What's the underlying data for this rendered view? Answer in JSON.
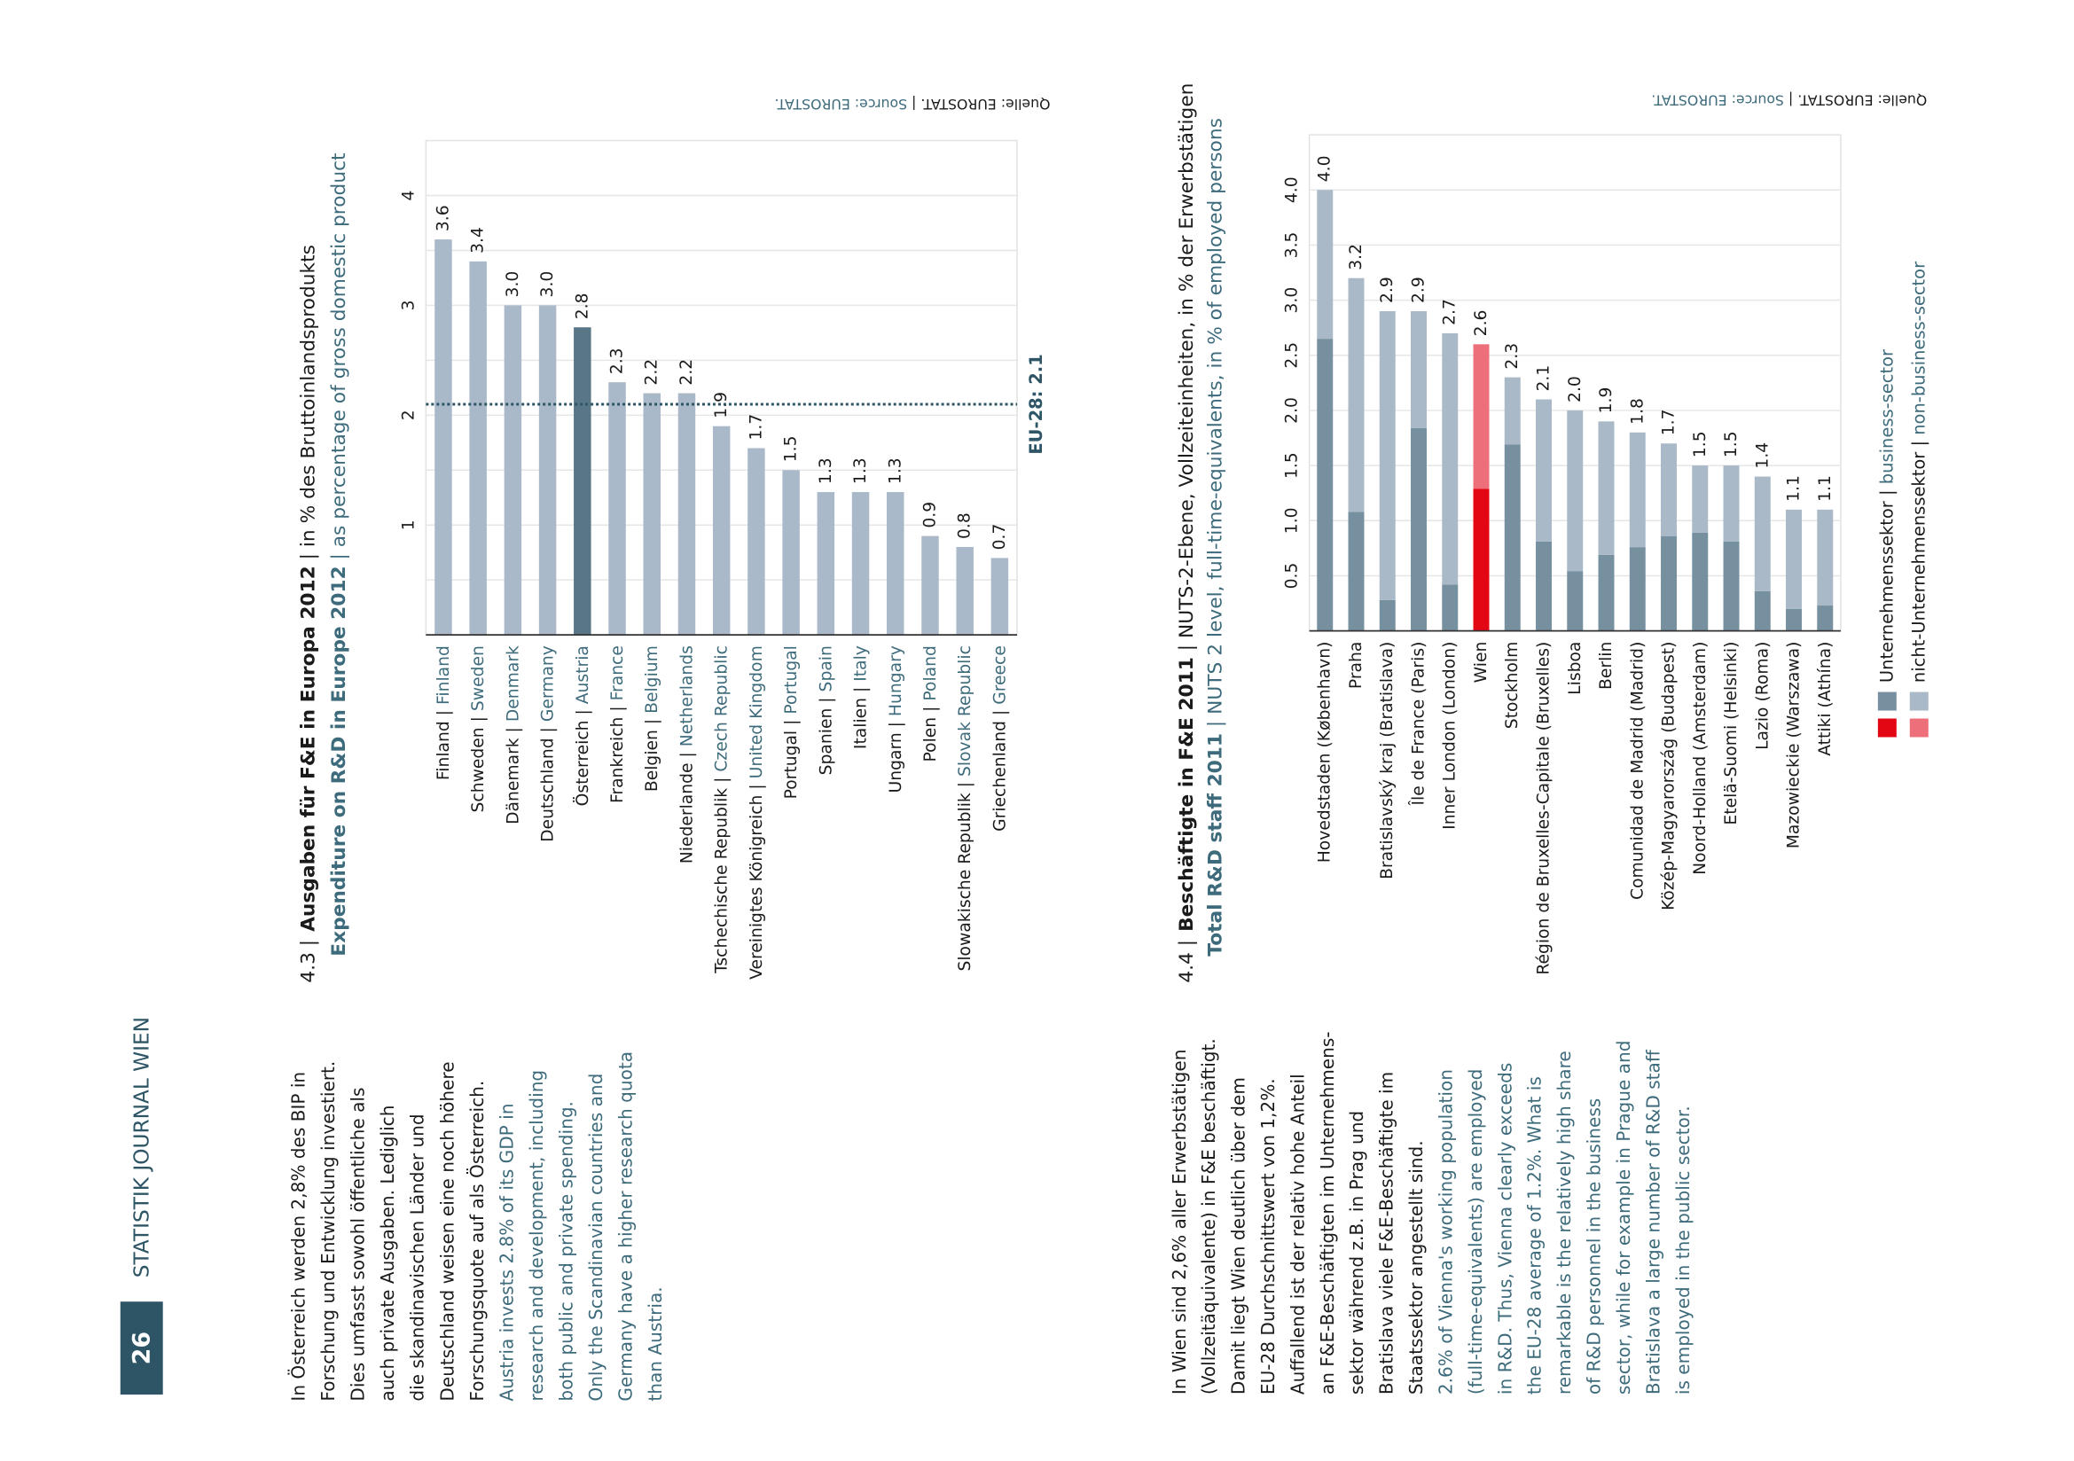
{
  "page_number": "26",
  "running_head": "STATISTIK JOURNAL WIEN",
  "paragraphs": [
    {
      "de": [
        "In Österreich werden  2,8%  des BIP  in",
        "Forschung und Entwicklung investiert.",
        "Dies umfasst sowohl öffentliche als",
        "auch private Ausgaben. Lediglich",
        "die skandinavischen Länder und",
        "Deutschland weisen eine noch höhere",
        "Forschungsquote auf als Österreich."
      ],
      "en": [
        "Austria invests 2.8% of its GDP in",
        "research and development, including",
        "both public and private spending.",
        "Only the Scandinavian countries and",
        "Germany have a higher research quota",
        "than Austria."
      ]
    },
    {
      "de": [
        "In Wien sind 2,6% aller Erwerbstätigen",
        "(Vollzeitäquivalente) in F&E beschäftigt.",
        "Damit liegt Wien deutlich über dem",
        "EU-28 Durchschnittswert von 1,2%.",
        "Auffallend ist der relativ hohe Anteil",
        "an F&E-Beschäftigten im Unternehmens-",
        "sektor während z.B. in Prag und",
        "Bratislava viele F&E-Beschäftigte im",
        "Staatssektor angestellt sind."
      ],
      "en": [
        "2.6% of Vienna's working population",
        "(full-time-equivalents) are employed",
        "in R&D. Thus, Vienna clearly exceeds",
        "the EU-28 average of 1.2%. What is",
        "remarkable is the relatively high share",
        "of R&D personnel in the business",
        "sector, while for example in Prague and",
        "Bratislava a large number of R&D staff",
        "is employed in the public sector."
      ]
    }
  ],
  "chart_data": [
    {
      "type": "bar",
      "number": "4.3 |",
      "title": "Ausgaben für F&E in Europa 2012",
      "title_rest": " | in % des Bruttoinlandsprodukts",
      "subtitle": "Expenditure on R&D in Europe 2012",
      "subtitle_rest": " | as percentage of gross domestic product",
      "separator": " | ",
      "categories_de": [
        "Finland",
        "Schweden",
        "Dänemark",
        "Deutschland",
        "Österreich",
        "Frankreich",
        "Belgien",
        "Niederlande",
        "Tschechische Republik",
        "Vereinigtes Königreich",
        "Portugal",
        "Spanien",
        "Italien",
        "Ungarn",
        "Polen",
        "Slowakische Republik",
        "Griechenland"
      ],
      "categories_en": [
        "Finland",
        "Sweden",
        "Denmark",
        "Germany",
        "Austria",
        "France",
        "Belgium",
        "Netherlands",
        "Czech Republic",
        "United Kingdom",
        "Portugal",
        "Spain",
        "Italy",
        "Hungary",
        "Poland",
        "Slovak Republic",
        "Greece"
      ],
      "values": [
        3.6,
        3.4,
        3.0,
        3.0,
        2.8,
        2.3,
        2.2,
        2.2,
        1.9,
        1.7,
        1.5,
        1.3,
        1.3,
        1.3,
        0.9,
        0.8,
        0.7
      ],
      "value_labels": [
        "3.6",
        "3.4",
        "3.0",
        "3.0",
        "2.8",
        "2.3",
        "2.2",
        "2.2",
        "1.9",
        "1.7",
        "1.5",
        "1.3",
        "1.3",
        "1.3",
        "0.9",
        "0.8",
        "0.7"
      ],
      "colors": [
        "#a9b9c9",
        "#a9b9c9",
        "#a9b9c9",
        "#a9b9c9",
        "#587686",
        "#a9b9c9",
        "#a9b9c9",
        "#a9b9c9",
        "#a9b9c9",
        "#a9b9c9",
        "#a9b9c9",
        "#a9b9c9",
        "#a9b9c9",
        "#a9b9c9",
        "#a9b9c9",
        "#a9b9c9",
        "#a9b9c9"
      ],
      "ylim": [
        0,
        4.5
      ],
      "yticks": [
        1,
        2,
        3,
        4
      ],
      "grid_ticks": [
        0.5,
        1,
        1.5,
        2,
        2.5,
        3,
        3.5,
        4
      ],
      "reference": {
        "value": 2.1,
        "label": "EU-28: 2.1"
      },
      "source_de": "Quelle: EUROSTAT.",
      "source_en": "Source: EUROSTAT."
    },
    {
      "type": "stacked_bar",
      "number": "4.4 |",
      "title": "Beschäftigte in F&E 2011",
      "title_rest": " | NUTS-2-Ebene, Vollzeiteinheiten, in % der Erwerbstätigen",
      "subtitle": "Total R&D staff 2011",
      "subtitle_rest": " | NUTS 2 level, full-time-equivalents, in % of employed persons",
      "separator": " | ",
      "categories": [
        "Hovedstaden (København)",
        "Praha",
        "Bratislavský kraj (Bratislava)",
        "Île de France (Paris)",
        "Inner London (London)",
        "Wien",
        "Stockholm",
        "Région de Bruxelles-Capitale (Bruxelles)",
        "Lisboa",
        "Berlin",
        "Comunidad de Madrid (Madrid)",
        "Közép-Magyarország (Budapest)",
        "Noord-Holland (Amsterdam)",
        "Etelä-Suomi (Helsinki)",
        "Lazio (Roma)",
        "Mazowieckie (Warszawa)",
        "Attiki (Athína)"
      ],
      "series": [
        {
          "name": "Unternehmenssektor",
          "name_en": "business-sector",
          "color": "#7790a0",
          "highlight_color": "#e30613",
          "values": [
            2.65,
            1.08,
            0.28,
            1.84,
            0.42,
            1.29,
            1.69,
            0.81,
            0.54,
            0.69,
            0.76,
            0.86,
            0.89,
            0.81,
            0.36,
            0.2,
            0.23
          ]
        },
        {
          "name": "nicht-Unternehmenssektor",
          "name_en": "non-business-sector",
          "color": "#a9b9c8",
          "highlight_color": "#ec6f7a",
          "values": [
            1.35,
            2.12,
            2.62,
            1.06,
            2.28,
            1.31,
            0.61,
            1.29,
            1.46,
            1.21,
            1.04,
            0.84,
            0.61,
            0.69,
            1.04,
            0.9,
            0.87
          ]
        }
      ],
      "highlight_index": 5,
      "total_labels": [
        "4.0",
        "3.2",
        "2.9",
        "2.9",
        "2.7",
        "2.6",
        "2.3",
        "2.1",
        "2.0",
        "1.9",
        "1.8",
        "1.7",
        "1.5",
        "1.5",
        "1.4",
        "1.1",
        "1.1"
      ],
      "ylim": [
        0,
        4.5
      ],
      "yticks": [
        0.5,
        {
          "value": 1,
          "label": "1.0"
        },
        1.5,
        {
          "value": 2,
          "label": "2.0"
        },
        2.5,
        {
          "value": 3,
          "label": "3.0"
        },
        3.5,
        {
          "value": 4,
          "label": "4.0"
        }
      ],
      "source_de": "Quelle: EUROSTAT.",
      "source_en": "Source: EUROSTAT."
    }
  ]
}
